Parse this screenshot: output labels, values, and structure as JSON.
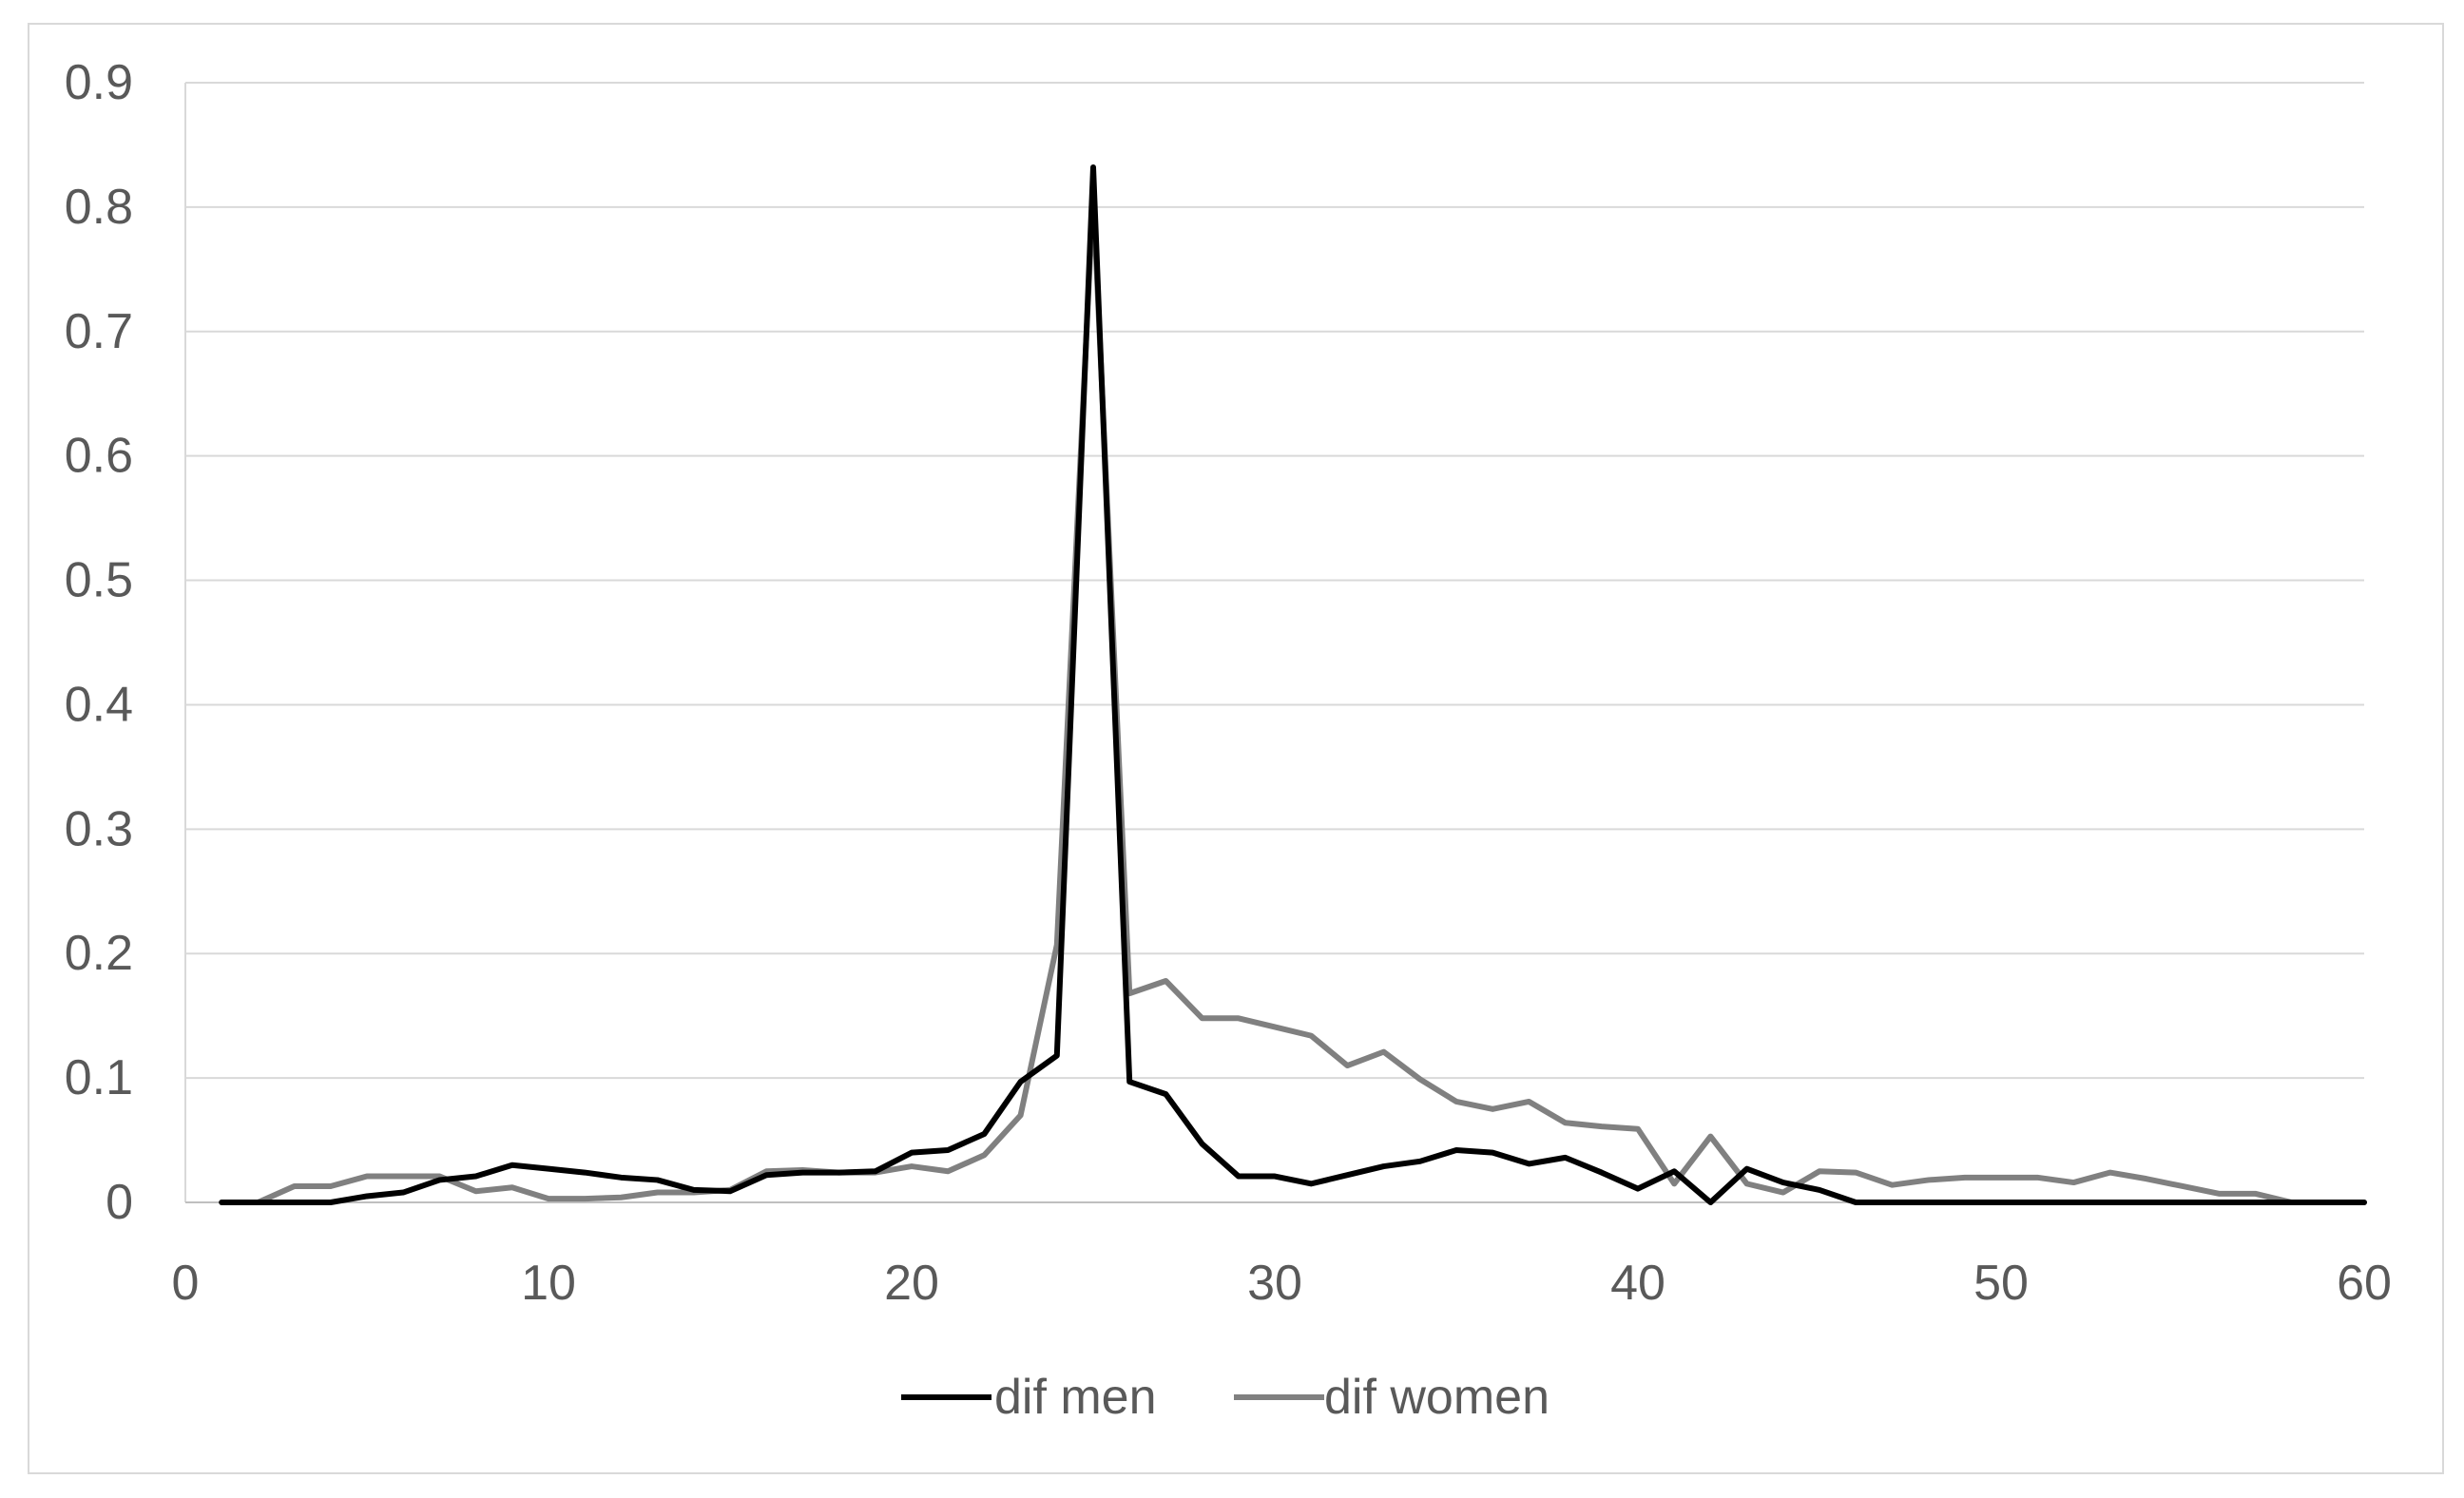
{
  "chart_data": {
    "type": "line",
    "title": "",
    "xlabel": "",
    "ylabel": "",
    "xlim": [
      0,
      60
    ],
    "ylim": [
      0,
      0.9
    ],
    "x_ticks": [
      0,
      10,
      20,
      30,
      40,
      50,
      60
    ],
    "x_tick_labels": [
      "0",
      "10",
      "20",
      "30",
      "40",
      "50",
      "60"
    ],
    "y_ticks": [
      0,
      0.1,
      0.2,
      0.3,
      0.4,
      0.5,
      0.6,
      0.7,
      0.8,
      0.9
    ],
    "y_tick_labels": [
      "0",
      "0.1",
      "0.2",
      "0.3",
      "0.4",
      "0.5",
      "0.6",
      "0.7",
      "0.8",
      "0.9"
    ],
    "grid": "horizontal",
    "legend_position": "bottom",
    "x": [
      1,
      2,
      3,
      4,
      5,
      6,
      7,
      8,
      9,
      10,
      11,
      12,
      13,
      14,
      15,
      16,
      17,
      18,
      19,
      20,
      21,
      22,
      23,
      24,
      25,
      26,
      27,
      28,
      29,
      30,
      31,
      32,
      33,
      34,
      35,
      36,
      37,
      38,
      39,
      40,
      41,
      42,
      43,
      44,
      45,
      46,
      47,
      48,
      49,
      50,
      51,
      52,
      53,
      54,
      55,
      56,
      57,
      58,
      59,
      60
    ],
    "series": [
      {
        "name": "dif men",
        "color": "#000000",
        "values": [
          0,
          0,
          0,
          0,
          0.005,
          0.008,
          0.018,
          0.021,
          0.03,
          0.027,
          0.024,
          0.02,
          0.018,
          0.01,
          0.009,
          0.022,
          0.024,
          0.024,
          0.025,
          0.04,
          0.042,
          0.055,
          0.097,
          0.118,
          0.832,
          0.097,
          0.087,
          0.047,
          0.021,
          0.021,
          0.015,
          0.022,
          0.029,
          0.033,
          0.042,
          0.04,
          0.031,
          0.036,
          0.024,
          0.011,
          0.025,
          0,
          0.027,
          0.016,
          0.01,
          0,
          0,
          0,
          0,
          0,
          0,
          0,
          0,
          0,
          0,
          0,
          0,
          0,
          0,
          0
        ]
      },
      {
        "name": "dif women",
        "color": "#808080",
        "values": [
          0,
          0,
          0.013,
          0.013,
          0.021,
          0.021,
          0.021,
          0.009,
          0.012,
          0.003,
          0.003,
          0.004,
          0.008,
          0.008,
          0.01,
          0.025,
          0.026,
          0.024,
          0.024,
          0.029,
          0.025,
          0.038,
          0.07,
          0.207,
          0.81,
          0.168,
          0.178,
          0.148,
          0.148,
          0.141,
          0.134,
          0.11,
          0.121,
          0.099,
          0.081,
          0.075,
          0.081,
          0.064,
          0.061,
          0.059,
          0.015,
          0.053,
          0.015,
          0.008,
          0.025,
          0.024,
          0.014,
          0.018,
          0.02,
          0.02,
          0.02,
          0.016,
          0.024,
          0.019,
          0.013,
          0.007,
          0.007,
          0,
          0,
          0
        ]
      }
    ]
  }
}
